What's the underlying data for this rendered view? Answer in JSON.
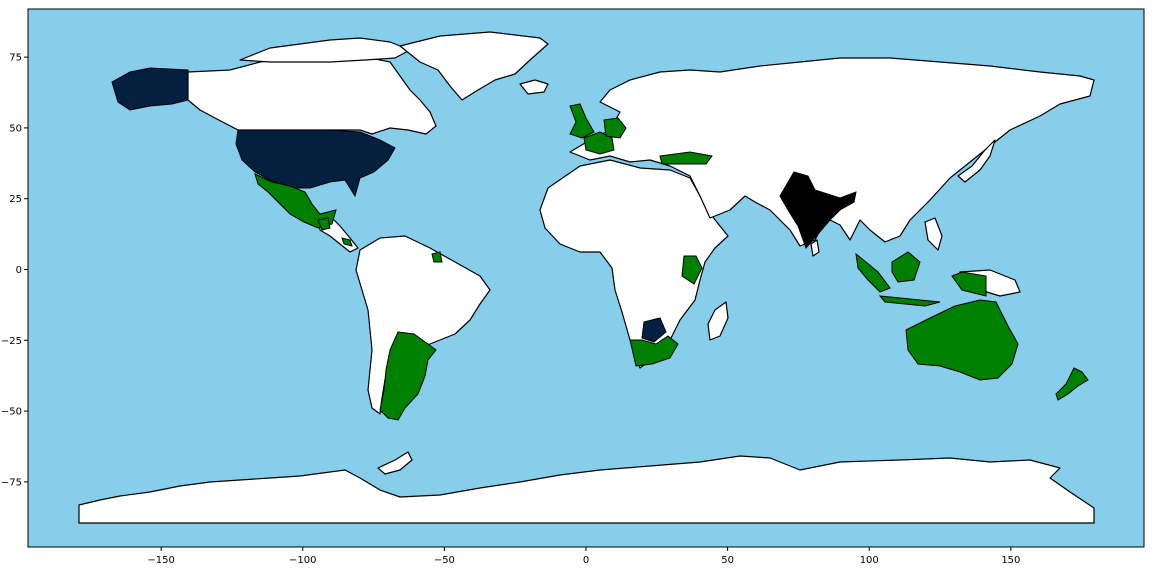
{
  "chart_data": {
    "type": "map",
    "projection": "plate-carree",
    "xlim": [
      -197,
      197
    ],
    "ylim": [
      -98,
      92
    ],
    "x_ticks": [
      -150,
      -100,
      -50,
      0,
      50,
      100,
      150
    ],
    "y_ticks": [
      -75,
      -50,
      -25,
      0,
      25,
      50,
      75
    ],
    "x_tick_labels": [
      "−150",
      "−100",
      "−50",
      "0",
      "50",
      "100",
      "150"
    ],
    "y_tick_labels": [
      "−75",
      "−50",
      "−25",
      "0",
      "25",
      "50",
      "75"
    ],
    "colors": {
      "ocean": "#87ceeb",
      "default_land": "#ffffff",
      "border": "#000000"
    },
    "highlighted_countries": [
      {
        "name": "United States",
        "color": "#03203f"
      },
      {
        "name": "Botswana",
        "color": "#03203f"
      },
      {
        "name": "India",
        "color": "#000000"
      },
      {
        "name": "Mexico",
        "color": "#008000"
      },
      {
        "name": "Argentina",
        "color": "#008000"
      },
      {
        "name": "United Kingdom",
        "color": "#008000"
      },
      {
        "name": "France",
        "color": "#008000"
      },
      {
        "name": "Germany",
        "color": "#008000"
      },
      {
        "name": "Turkey",
        "color": "#008000"
      },
      {
        "name": "Kenya",
        "color": "#008000"
      },
      {
        "name": "South Africa",
        "color": "#008000"
      },
      {
        "name": "Indonesia",
        "color": "#008000"
      },
      {
        "name": "Australia",
        "color": "#008000"
      },
      {
        "name": "New Zealand",
        "color": "#008000"
      },
      {
        "name": "Guatemala",
        "color": "#008000"
      },
      {
        "name": "Costa Rica",
        "color": "#008000"
      },
      {
        "name": "Suriname",
        "color": "#008000"
      }
    ]
  }
}
